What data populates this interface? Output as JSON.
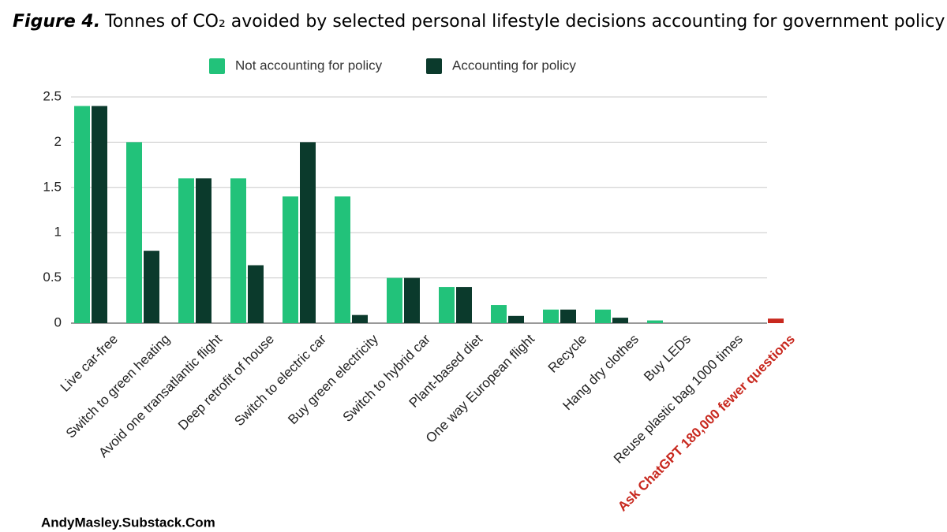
{
  "chart_data": {
    "type": "bar",
    "figure_label": "Figure 4.",
    "title": "Tonnes of CO₂ avoided by selected personal lifestyle decisions accounting for government policy",
    "categories": [
      "Live car-free",
      "Switch to green heating",
      "Avoid one transatlantic flight",
      "Deep retrofit of house",
      "Switch to electric car",
      "Buy green electricity",
      "Switch to hybrid car",
      "Plant-based diet",
      "One way European flight",
      "Recycle",
      "Hang dry clothes",
      "Buy LEDs",
      "Reuse plastic bag 1000 times",
      "Ask ChatGPT 180,000 fewer questions"
    ],
    "series": [
      {
        "name": "Not accounting for policy",
        "color": "#22c27a",
        "colors": [
          "#22c27a",
          "#22c27a",
          "#22c27a",
          "#22c27a",
          "#22c27a",
          "#22c27a",
          "#22c27a",
          "#22c27a",
          "#22c27a",
          "#22c27a",
          "#22c27a",
          "#22c27a",
          "#22c27a",
          "#c8281e"
        ],
        "values": [
          2.4,
          2.0,
          1.6,
          1.6,
          1.4,
          1.4,
          0.5,
          0.4,
          0.2,
          0.15,
          0.15,
          0.03,
          0,
          0.05
        ]
      },
      {
        "name": "Accounting for policy",
        "color": "#0b3a2c",
        "values": [
          2.4,
          0.8,
          1.6,
          0.64,
          2.0,
          0.09,
          0.5,
          0.4,
          0.08,
          0.15,
          0.06,
          0,
          0,
          null
        ]
      }
    ],
    "ylim": [
      0,
      2.5
    ],
    "yticks": [
      0,
      0.5,
      1,
      1.5,
      2,
      2.5
    ],
    "grid": true,
    "legend": "top",
    "source": "AndyMasley.Substack.Com"
  }
}
